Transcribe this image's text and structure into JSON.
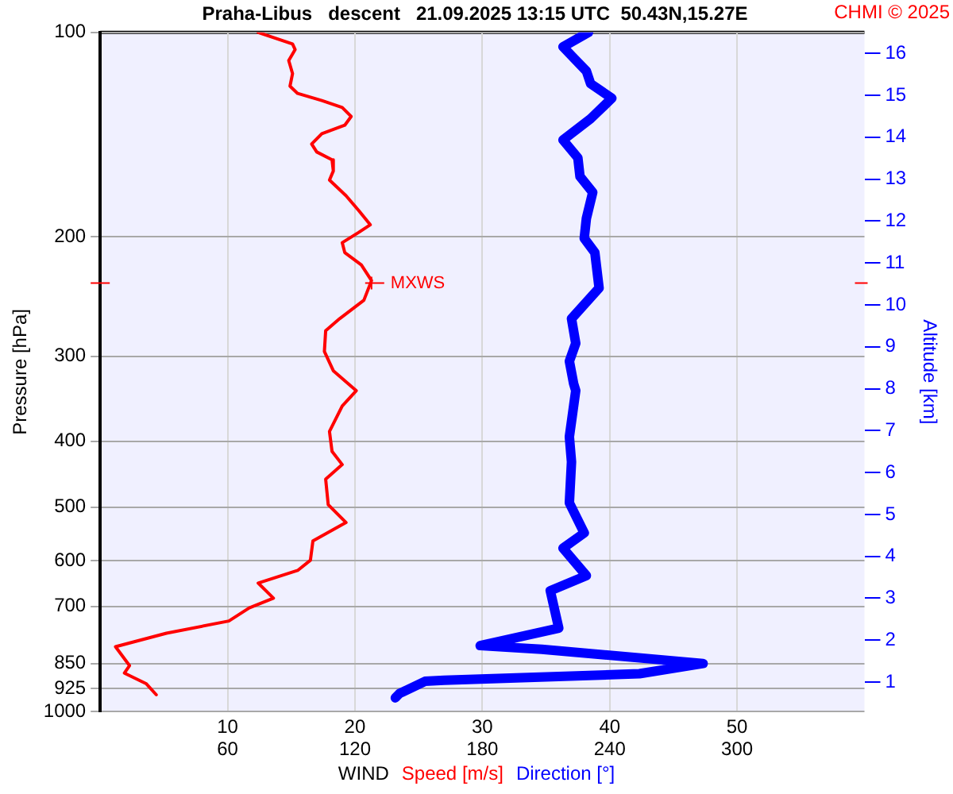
{
  "chart_data": {
    "type": "line",
    "orientation": "horizontal",
    "title": "Praha-Libus   descent   21.09.2025 13:15 UTC  50.43N,15.27E",
    "xlabel": "WIND",
    "ylabel": "Pressure [hPa]",
    "y2label": "Altitude [km]",
    "annotations": [
      "CHMI © 2025",
      {
        "text": "MXWS",
        "x": 21.3,
        "y": 234
      }
    ],
    "log": "y",
    "grid": true,
    "legend": "bottom",
    "line_style": "solid",
    "marker": "none",
    "xlim": [
      0,
      60
    ],
    "xticks": [
      10,
      20,
      30,
      40,
      50
    ],
    "x2lim": [
      0,
      360
    ],
    "x2ticks": [
      60,
      120,
      180,
      240,
      300
    ],
    "ylim": [
      1000,
      100
    ],
    "yticks": [
      100,
      200,
      300,
      400,
      500,
      600,
      700,
      850,
      925,
      1000
    ],
    "y2lim": [
      0.3,
      16.5
    ],
    "y2ticks": [
      1,
      2,
      3,
      4,
      5,
      6,
      7,
      8,
      9,
      10,
      11,
      12,
      13,
      14,
      15,
      16
    ],
    "series": [
      {
        "name": "Speed [m/s]",
        "color": "#ff0000",
        "x": [
          100,
          104,
          106,
          110,
          115,
          120,
          123,
          126,
          129,
          133,
          137,
          141,
          146,
          150,
          154,
          160,
          165,
          174,
          183,
          192,
          197,
          204,
          211,
          220,
          232,
          248,
          264,
          275,
          295,
          315,
          337,
          355,
          387,
          414,
          433,
          455,
          496,
          527,
          561,
          599,
          620,
          647,
          681,
          704,
          736,
          767,
          803,
          856,
          878,
          910,
          945
        ],
        "values": [
          12.4,
          15.1,
          15.3,
          14.8,
          15.1,
          14.9,
          15.5,
          17.4,
          19.0,
          19.7,
          19.2,
          17.4,
          16.6,
          17.0,
          18.2,
          18.3,
          18.0,
          19.3,
          20.3,
          21.2,
          20.3,
          19.0,
          19.2,
          20.5,
          21.3,
          20.7,
          18.8,
          17.7,
          17.6,
          18.3,
          20.1,
          19.0,
          18.0,
          18.2,
          19.0,
          17.7,
          17.9,
          19.3,
          16.7,
          16.5,
          15.5,
          12.4,
          13.6,
          11.7,
          10.1,
          5.2,
          1.2,
          2.3,
          1.9,
          3.6,
          4.4
        ]
      },
      {
        "name": "Direction [°]",
        "color": "#0000ff",
        "axis": "x2",
        "x": [
          100,
          105,
          109,
          114,
          119,
          125,
          134,
          144,
          153,
          163,
          172,
          188,
          201,
          211,
          238,
          264,
          287,
          305,
          329,
          337,
          394,
          429,
          493,
          546,
          575,
          631,
          664,
          754,
          800,
          810,
          850,
          880,
          900,
          903,
          941,
          955
        ],
        "values": [
          230,
          218,
          223,
          229,
          231,
          241,
          231,
          218,
          225,
          226,
          232,
          229,
          228,
          233,
          235,
          222,
          224,
          221,
          223,
          224,
          221,
          222,
          221,
          228,
          218,
          229,
          212,
          216,
          179,
          208,
          284,
          254,
          162,
          153,
          141,
          139
        ]
      }
    ]
  }
}
